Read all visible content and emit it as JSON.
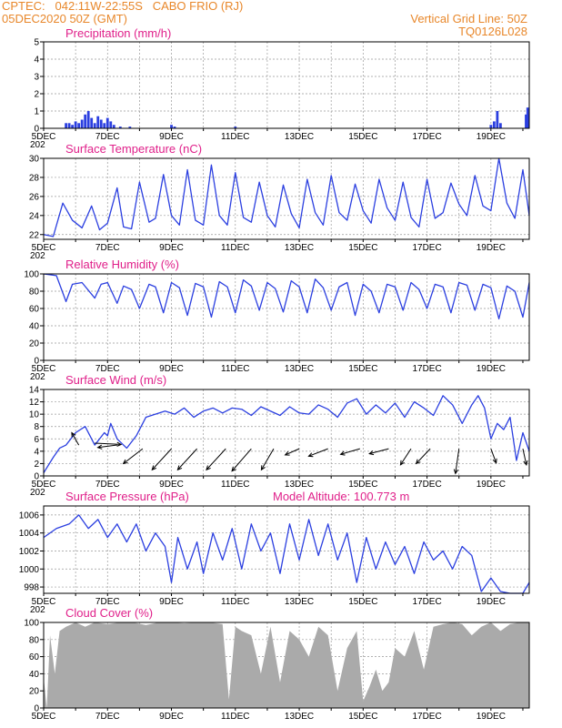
{
  "header": {
    "line1": "CPTEC:   042:11W-22:55S   CABO FRIO (RJ)",
    "line2": "05DEC2020 50Z (GMT)",
    "grid_note": "Vertical Grid Line: 50Z",
    "run_id": "TQ0126L028"
  },
  "colors": {
    "header": "#e8872a",
    "title": "#e0208a",
    "line": "#2b3fe0",
    "cloud": "#aaaaaa"
  },
  "x_axis": {
    "start": "05DEC2020",
    "day_labels": [
      "5DEC",
      "7DEC",
      "9DEC",
      "11DEC",
      "13DEC",
      "15DEC",
      "17DEC",
      "19DEC"
    ],
    "day_label_positions": [
      0,
      2,
      4,
      6,
      8,
      10,
      12,
      14
    ],
    "year_stub": "202",
    "range_days": [
      0,
      15.2
    ]
  },
  "chart_data": [
    {
      "type": "bar",
      "title": "Precipitation (mm/h)",
      "ylim": [
        0,
        5
      ],
      "yticks": [
        "0",
        "1",
        "2",
        "3",
        "4",
        "5"
      ],
      "x": [
        0.7,
        0.8,
        0.9,
        1.0,
        1.1,
        1.2,
        1.3,
        1.4,
        1.5,
        1.6,
        1.7,
        1.8,
        1.9,
        2.0,
        2.1,
        2.2,
        2.4,
        2.7,
        4.0,
        4.1,
        6.0,
        14.0,
        14.1,
        14.2,
        14.3,
        15.1,
        15.15
      ],
      "values": [
        0.3,
        0.3,
        0.2,
        0.4,
        0.3,
        0.5,
        0.8,
        1.0,
        0.6,
        0.3,
        0.7,
        0.5,
        0.3,
        0.6,
        0.4,
        0.2,
        0.1,
        0.1,
        0.2,
        0.1,
        0.1,
        0.2,
        0.4,
        1.0,
        0.3,
        0.8,
        1.2
      ]
    },
    {
      "type": "line",
      "title": "Surface Temperature (nC)",
      "ylim": [
        21.5,
        30
      ],
      "yticks": [
        "22",
        "24",
        "26",
        "28",
        "30"
      ],
      "x": [
        0,
        0.3,
        0.6,
        0.9,
        1.2,
        1.5,
        1.75,
        2.0,
        2.3,
        2.5,
        2.75,
        3.0,
        3.3,
        3.5,
        3.75,
        4.0,
        4.25,
        4.5,
        4.75,
        5.0,
        5.25,
        5.5,
        5.75,
        6.0,
        6.25,
        6.5,
        6.75,
        7.0,
        7.25,
        7.5,
        7.75,
        8.0,
        8.25,
        8.5,
        8.75,
        9.0,
        9.25,
        9.5,
        9.75,
        10.0,
        10.25,
        10.5,
        10.75,
        11.0,
        11.25,
        11.5,
        11.75,
        12.0,
        12.25,
        12.5,
        12.75,
        13.0,
        13.25,
        13.5,
        13.75,
        14.0,
        14.25,
        14.5,
        14.75,
        15.0,
        15.2
      ],
      "values": [
        22,
        21.8,
        25.3,
        23.5,
        22.7,
        25,
        22.5,
        23.2,
        26.9,
        22.8,
        22.6,
        27.5,
        23.3,
        23.7,
        28.3,
        24,
        23,
        28.8,
        23.5,
        23,
        29.3,
        24,
        23,
        28.5,
        23.8,
        23.3,
        27.5,
        24,
        22.8,
        27.2,
        24.2,
        22.7,
        27.8,
        24.3,
        23,
        28.2,
        24.3,
        23.5,
        27.3,
        24.5,
        23.2,
        27.8,
        24.8,
        23.5,
        27.5,
        23.8,
        22.8,
        27.8,
        23.7,
        24.3,
        27.4,
        25.2,
        24,
        28.2,
        25,
        24.5,
        30,
        25.3,
        23.7,
        28.8,
        24
      ]
    },
    {
      "type": "line",
      "title": "Relative Humidity (%)",
      "ylim": [
        0,
        100
      ],
      "yticks": [
        "0",
        "20",
        "40",
        "60",
        "80",
        "100"
      ],
      "x": [
        0,
        0.4,
        0.7,
        0.9,
        1.2,
        1.6,
        1.8,
        2.0,
        2.3,
        2.5,
        2.75,
        3.0,
        3.3,
        3.5,
        3.75,
        4.0,
        4.25,
        4.5,
        4.75,
        5.0,
        5.25,
        5.5,
        5.75,
        6.0,
        6.25,
        6.5,
        6.75,
        7.0,
        7.25,
        7.5,
        7.75,
        8.0,
        8.25,
        8.5,
        8.75,
        9.0,
        9.25,
        9.5,
        9.75,
        10.0,
        10.25,
        10.5,
        10.75,
        11.0,
        11.25,
        11.5,
        11.75,
        12.0,
        12.25,
        12.5,
        12.75,
        13.0,
        13.25,
        13.5,
        13.75,
        14.0,
        14.25,
        14.5,
        14.75,
        15.0,
        15.2
      ],
      "values": [
        100,
        98,
        68,
        88,
        90,
        72,
        88,
        90,
        66,
        86,
        82,
        60,
        88,
        85,
        55,
        90,
        84,
        52,
        89,
        85,
        50,
        91,
        85,
        55,
        93,
        86,
        58,
        90,
        83,
        56,
        92,
        85,
        55,
        94,
        84,
        58,
        85,
        90,
        52,
        88,
        80,
        55,
        88,
        85,
        58,
        90,
        82,
        60,
        88,
        85,
        55,
        90,
        87,
        58,
        88,
        84,
        48,
        86,
        80,
        50,
        90
      ]
    },
    {
      "type": "line",
      "title": "Surface Wind (m/s)",
      "ylim": [
        0,
        14
      ],
      "yticks": [
        "0",
        "2",
        "4",
        "6",
        "8",
        "10",
        "12",
        "14"
      ],
      "x": [
        0,
        0.3,
        0.5,
        0.7,
        1.0,
        1.3,
        1.6,
        1.9,
        2.0,
        2.1,
        2.3,
        2.6,
        2.9,
        3.2,
        3.5,
        3.8,
        4.1,
        4.4,
        4.7,
        5.0,
        5.3,
        5.6,
        5.9,
        6.2,
        6.5,
        6.8,
        7.1,
        7.4,
        7.7,
        8.0,
        8.3,
        8.6,
        8.9,
        9.2,
        9.5,
        9.8,
        10.1,
        10.4,
        10.7,
        11.0,
        11.3,
        11.6,
        11.9,
        12.2,
        12.5,
        12.8,
        13.1,
        13.4,
        13.6,
        13.8,
        14.0,
        14.2,
        14.4,
        14.6,
        14.8,
        15.0,
        15.2
      ],
      "values": [
        0.5,
        3,
        4.5,
        5,
        7,
        8,
        5,
        7,
        6.5,
        8.5,
        6,
        4.5,
        6.5,
        9.5,
        10,
        10.5,
        10,
        11,
        9.5,
        10.5,
        11,
        10.2,
        11,
        10.8,
        9.8,
        11.2,
        10.5,
        9.8,
        11.2,
        10.2,
        10,
        11.5,
        10.8,
        9.5,
        11.8,
        12.5,
        10,
        11.5,
        10.2,
        11.8,
        9.5,
        12,
        11,
        9.8,
        13,
        11.5,
        8.5,
        11.5,
        13,
        11,
        6,
        8.5,
        7.5,
        9.5,
        2.5,
        7,
        4
      ]
    },
    {
      "type": "line",
      "title": "Surface Pressure (hPa)",
      "annotation": "Model Altitude: 100.773 m",
      "ylim": [
        997.3,
        1007
      ],
      "yticks": [
        "998",
        "1000",
        "1002",
        "1004",
        "1006"
      ],
      "x": [
        0,
        0.4,
        0.8,
        1.1,
        1.4,
        1.7,
        2.0,
        2.3,
        2.6,
        2.9,
        3.2,
        3.5,
        3.8,
        4.0,
        4.2,
        4.5,
        4.8,
        5.0,
        5.3,
        5.6,
        5.9,
        6.2,
        6.5,
        6.8,
        7.1,
        7.4,
        7.7,
        8.0,
        8.3,
        8.6,
        8.9,
        9.2,
        9.5,
        9.8,
        10.1,
        10.4,
        10.7,
        11.0,
        11.3,
        11.6,
        11.9,
        12.2,
        12.5,
        12.8,
        13.1,
        13.4,
        13.7,
        14.0,
        14.3,
        14.6,
        15.0,
        15.2
      ],
      "values": [
        1003.5,
        1004.5,
        1005,
        1006,
        1004.5,
        1005.5,
        1003.5,
        1005,
        1003,
        1005,
        1002,
        1004,
        1002.5,
        998.5,
        1003.5,
        1000,
        1003,
        999.5,
        1004,
        1001,
        1004.5,
        1000,
        1005,
        1002,
        1004,
        999.5,
        1005,
        1001,
        1005.5,
        1001.5,
        1005,
        1001,
        1004,
        998.5,
        1003.5,
        1000,
        1003,
        1000.5,
        1002.5,
        999.5,
        1003,
        1001,
        1002,
        1000,
        1002.5,
        1001.5,
        997.5,
        999,
        997.5,
        996,
        995,
        998.5
      ]
    },
    {
      "type": "area",
      "title": "Cloud Cover (%)",
      "ylim": [
        0,
        100
      ],
      "yticks": [
        "0",
        "20",
        "40",
        "60",
        "80",
        "100"
      ],
      "x": [
        0,
        0.1,
        0.2,
        0.35,
        0.5,
        0.7,
        1.0,
        1.3,
        1.6,
        2.0,
        2.4,
        2.8,
        3.2,
        3.6,
        4.0,
        4.4,
        4.8,
        5.2,
        5.6,
        5.8,
        6.0,
        6.2,
        6.5,
        6.8,
        7.1,
        7.4,
        7.7,
        8.0,
        8.3,
        8.6,
        8.9,
        9.2,
        9.5,
        9.8,
        10.0,
        10.2,
        10.4,
        10.6,
        10.8,
        11.0,
        11.3,
        11.6,
        11.9,
        12.2,
        12.5,
        12.8,
        13.1,
        13.4,
        13.7,
        14.0,
        14.3,
        14.6,
        14.9,
        15.2
      ],
      "values": [
        35,
        0,
        85,
        40,
        90,
        95,
        100,
        95,
        100,
        98,
        100,
        100,
        97,
        100,
        100,
        99,
        100,
        100,
        98,
        10,
        95,
        90,
        85,
        40,
        95,
        30,
        90,
        80,
        60,
        95,
        85,
        20,
        70,
        90,
        8,
        25,
        45,
        20,
        30,
        70,
        60,
        90,
        45,
        95,
        98,
        100,
        98,
        85,
        95,
        100,
        90,
        98,
        100,
        100
      ]
    }
  ]
}
